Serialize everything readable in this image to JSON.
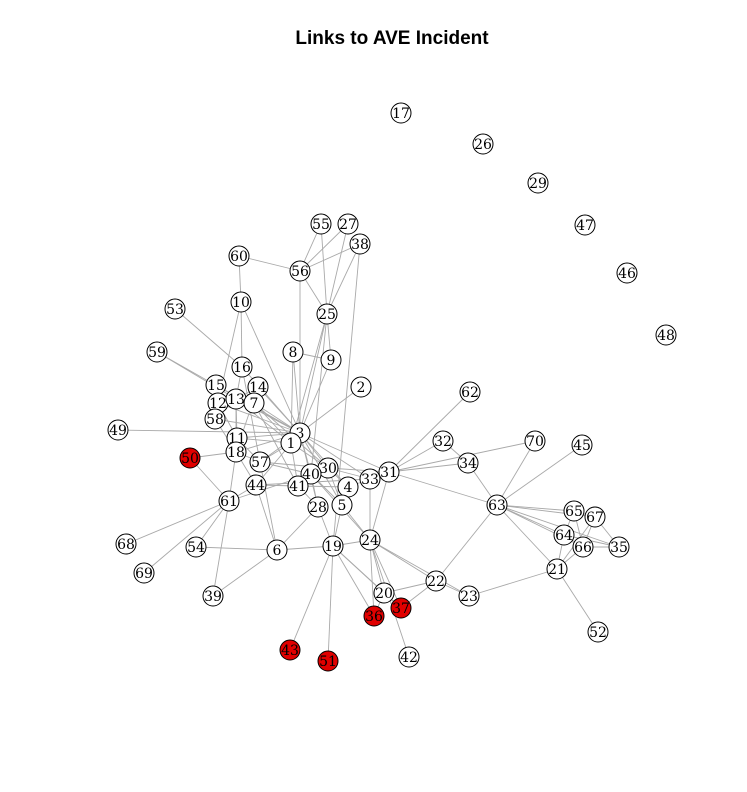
{
  "title": "Links to AVE Incident",
  "colors": {
    "highlight": "#e00000",
    "normal": "#ffffff",
    "edge": "#a9a9a9"
  },
  "nodes": [
    {
      "id": "17"
    },
    {
      "id": "26"
    },
    {
      "id": "29"
    },
    {
      "id": "47"
    },
    {
      "id": "46"
    },
    {
      "id": "48"
    },
    {
      "id": "55"
    },
    {
      "id": "27"
    },
    {
      "id": "38"
    },
    {
      "id": "60"
    },
    {
      "id": "56"
    },
    {
      "id": "10"
    },
    {
      "id": "53"
    },
    {
      "id": "25"
    },
    {
      "id": "59"
    },
    {
      "id": "8"
    },
    {
      "id": "9"
    },
    {
      "id": "16"
    },
    {
      "id": "2"
    },
    {
      "id": "62"
    },
    {
      "id": "15"
    },
    {
      "id": "14"
    },
    {
      "id": "12"
    },
    {
      "id": "13"
    },
    {
      "id": "7"
    },
    {
      "id": "58"
    },
    {
      "id": "49"
    },
    {
      "id": "3"
    },
    {
      "id": "11"
    },
    {
      "id": "1"
    },
    {
      "id": "32"
    },
    {
      "id": "70"
    },
    {
      "id": "45"
    },
    {
      "id": "50",
      "highlight": true
    },
    {
      "id": "18"
    },
    {
      "id": "57"
    },
    {
      "id": "30"
    },
    {
      "id": "40"
    },
    {
      "id": "31"
    },
    {
      "id": "34"
    },
    {
      "id": "33"
    },
    {
      "id": "44"
    },
    {
      "id": "41"
    },
    {
      "id": "4"
    },
    {
      "id": "61"
    },
    {
      "id": "28"
    },
    {
      "id": "5"
    },
    {
      "id": "63"
    },
    {
      "id": "65"
    },
    {
      "id": "67"
    },
    {
      "id": "64"
    },
    {
      "id": "24"
    },
    {
      "id": "68"
    },
    {
      "id": "54"
    },
    {
      "id": "6"
    },
    {
      "id": "19"
    },
    {
      "id": "66"
    },
    {
      "id": "35"
    },
    {
      "id": "69"
    },
    {
      "id": "21"
    },
    {
      "id": "22"
    },
    {
      "id": "20"
    },
    {
      "id": "39"
    },
    {
      "id": "23"
    },
    {
      "id": "37",
      "highlight": true
    },
    {
      "id": "36",
      "highlight": true
    },
    {
      "id": "52"
    },
    {
      "id": "43",
      "highlight": true
    },
    {
      "id": "42"
    },
    {
      "id": "51",
      "highlight": true
    }
  ],
  "edges": [
    [
      "55",
      "56"
    ],
    [
      "55",
      "25"
    ],
    [
      "27",
      "56"
    ],
    [
      "27",
      "25"
    ],
    [
      "38",
      "56"
    ],
    [
      "38",
      "25"
    ],
    [
      "38",
      "19"
    ],
    [
      "60",
      "56"
    ],
    [
      "60",
      "10"
    ],
    [
      "56",
      "3"
    ],
    [
      "56",
      "25"
    ],
    [
      "10",
      "16"
    ],
    [
      "10",
      "3"
    ],
    [
      "10",
      "12"
    ],
    [
      "53",
      "16"
    ],
    [
      "59",
      "13"
    ],
    [
      "59",
      "3"
    ],
    [
      "25",
      "3"
    ],
    [
      "25",
      "1"
    ],
    [
      "25",
      "9"
    ],
    [
      "25",
      "40"
    ],
    [
      "8",
      "3"
    ],
    [
      "8",
      "9"
    ],
    [
      "8",
      "1"
    ],
    [
      "9",
      "3"
    ],
    [
      "2",
      "3"
    ],
    [
      "16",
      "3"
    ],
    [
      "16",
      "13"
    ],
    [
      "16",
      "57"
    ],
    [
      "15",
      "3"
    ],
    [
      "15",
      "12"
    ],
    [
      "14",
      "3"
    ],
    [
      "14",
      "13"
    ],
    [
      "14",
      "18"
    ],
    [
      "12",
      "3"
    ],
    [
      "12",
      "11"
    ],
    [
      "13",
      "3"
    ],
    [
      "13",
      "1"
    ],
    [
      "13",
      "11"
    ],
    [
      "13",
      "18"
    ],
    [
      "13",
      "7"
    ],
    [
      "7",
      "3"
    ],
    [
      "7",
      "1"
    ],
    [
      "7",
      "30"
    ],
    [
      "7",
      "41"
    ],
    [
      "58",
      "3"
    ],
    [
      "58",
      "12"
    ],
    [
      "58",
      "18"
    ],
    [
      "49",
      "3"
    ],
    [
      "3",
      "1"
    ],
    [
      "3",
      "30"
    ],
    [
      "3",
      "40"
    ],
    [
      "3",
      "31"
    ],
    [
      "3",
      "33"
    ],
    [
      "3",
      "4"
    ],
    [
      "3",
      "5"
    ],
    [
      "3",
      "28"
    ],
    [
      "3",
      "44"
    ],
    [
      "3",
      "57"
    ],
    [
      "3",
      "11"
    ],
    [
      "3",
      "18"
    ],
    [
      "11",
      "1"
    ],
    [
      "11",
      "18"
    ],
    [
      "11",
      "57"
    ],
    [
      "1",
      "30"
    ],
    [
      "1",
      "41"
    ],
    [
      "1",
      "57"
    ],
    [
      "50",
      "18"
    ],
    [
      "50",
      "61"
    ],
    [
      "18",
      "61"
    ],
    [
      "18",
      "44"
    ],
    [
      "18",
      "57"
    ],
    [
      "57",
      "30"
    ],
    [
      "57",
      "40"
    ],
    [
      "30",
      "40"
    ],
    [
      "30",
      "31"
    ],
    [
      "30",
      "33"
    ],
    [
      "30",
      "4"
    ],
    [
      "30",
      "5"
    ],
    [
      "40",
      "41"
    ],
    [
      "40",
      "28"
    ],
    [
      "40",
      "5"
    ],
    [
      "40",
      "24"
    ],
    [
      "31",
      "32"
    ],
    [
      "31",
      "70"
    ],
    [
      "31",
      "34"
    ],
    [
      "31",
      "33"
    ],
    [
      "31",
      "24"
    ],
    [
      "31",
      "62"
    ],
    [
      "31",
      "63"
    ],
    [
      "32",
      "34"
    ],
    [
      "34",
      "63"
    ],
    [
      "70",
      "63"
    ],
    [
      "45",
      "63"
    ],
    [
      "63",
      "65"
    ],
    [
      "63",
      "67"
    ],
    [
      "63",
      "64"
    ],
    [
      "63",
      "66"
    ],
    [
      "63",
      "35"
    ],
    [
      "63",
      "21"
    ],
    [
      "63",
      "22"
    ],
    [
      "65",
      "67"
    ],
    [
      "65",
      "64"
    ],
    [
      "65",
      "66"
    ],
    [
      "67",
      "66"
    ],
    [
      "67",
      "35"
    ],
    [
      "67",
      "21"
    ],
    [
      "64",
      "66"
    ],
    [
      "64",
      "35"
    ],
    [
      "64",
      "21"
    ],
    [
      "66",
      "35"
    ],
    [
      "66",
      "21"
    ],
    [
      "21",
      "23"
    ],
    [
      "21",
      "52"
    ],
    [
      "33",
      "4"
    ],
    [
      "33",
      "24"
    ],
    [
      "33",
      "44"
    ],
    [
      "4",
      "5"
    ],
    [
      "4",
      "41"
    ],
    [
      "5",
      "19"
    ],
    [
      "5",
      "24"
    ],
    [
      "28",
      "6"
    ],
    [
      "28",
      "19"
    ],
    [
      "41",
      "44"
    ],
    [
      "44",
      "61"
    ],
    [
      "61",
      "54"
    ],
    [
      "61",
      "68"
    ],
    [
      "61",
      "39"
    ],
    [
      "61",
      "69"
    ],
    [
      "61",
      "40"
    ],
    [
      "6",
      "39"
    ],
    [
      "6",
      "19"
    ],
    [
      "6",
      "54"
    ],
    [
      "6",
      "57"
    ],
    [
      "19",
      "24"
    ],
    [
      "19",
      "20"
    ],
    [
      "19",
      "36"
    ],
    [
      "19",
      "43"
    ],
    [
      "19",
      "51"
    ],
    [
      "19",
      "37"
    ],
    [
      "24",
      "20"
    ],
    [
      "24",
      "22"
    ],
    [
      "24",
      "23"
    ],
    [
      "24",
      "36"
    ],
    [
      "24",
      "37"
    ],
    [
      "24",
      "42"
    ],
    [
      "22",
      "20"
    ],
    [
      "22",
      "37"
    ],
    [
      "22",
      "23"
    ],
    [
      "20",
      "36"
    ],
    [
      "20",
      "37"
    ],
    [
      "44",
      "6"
    ],
    [
      "41",
      "28"
    ]
  ]
}
